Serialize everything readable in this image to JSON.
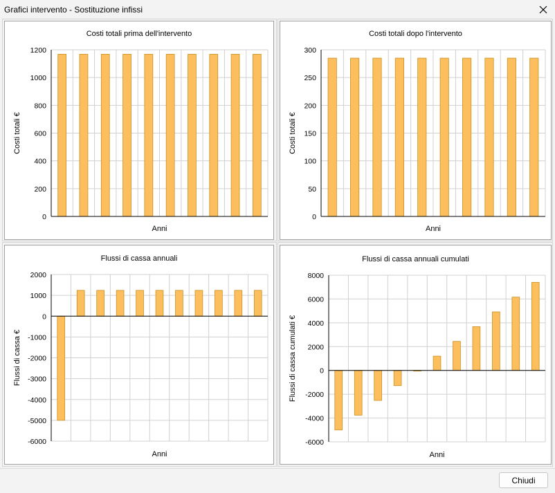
{
  "window": {
    "title": "Grafici intervento - Sostituzione infissi"
  },
  "footer": {
    "close_label": "Chiudi"
  },
  "colors": {
    "bar_fill": "#FDBF5E",
    "bar_stroke": "#C9901F",
    "grid": "#d0d0d0",
    "axis": "#000000"
  },
  "chart_data": [
    {
      "type": "bar",
      "title": "Costi totali prima dell'intervento",
      "xlabel": "Anni",
      "ylabel": "Costi totali €",
      "ylim": [
        0,
        1200
      ],
      "yticks": [
        0,
        200,
        400,
        600,
        800,
        1000,
        1200
      ],
      "values": [
        1168,
        1168,
        1168,
        1168,
        1168,
        1168,
        1168,
        1168,
        1168,
        1168
      ],
      "grid": true
    },
    {
      "type": "bar",
      "title": "Costi totali dopo l'intervento",
      "xlabel": "Anni",
      "ylabel": "Costi totali €",
      "ylim": [
        0,
        300
      ],
      "yticks": [
        0,
        50,
        100,
        150,
        200,
        250,
        300
      ],
      "values": [
        285,
        285,
        285,
        285,
        285,
        285,
        285,
        285,
        285,
        285
      ],
      "grid": true
    },
    {
      "type": "bar",
      "title": "Flussi di cassa annuali",
      "xlabel": "Anni",
      "ylabel": "Flussi di cassa €",
      "ylim": [
        -6000,
        2000
      ],
      "yticks": [
        -6000,
        -5000,
        -4000,
        -3000,
        -2000,
        -1000,
        0,
        1000,
        2000
      ],
      "values": [
        -5000,
        1240,
        1240,
        1240,
        1240,
        1240,
        1240,
        1240,
        1240,
        1240,
        1240
      ],
      "grid": true
    },
    {
      "type": "bar",
      "title": "Flussi di cassa annuali cumulati",
      "xlabel": "Anni",
      "ylabel": "Flussi di cassa cumulati €",
      "ylim": [
        -6000,
        8000
      ],
      "yticks": [
        -6000,
        -4000,
        -2000,
        0,
        2000,
        4000,
        6000,
        8000
      ],
      "values": [
        -5000,
        -3760,
        -2520,
        -1280,
        -40,
        1200,
        2440,
        3680,
        4920,
        6160,
        7400
      ],
      "grid": true
    }
  ]
}
